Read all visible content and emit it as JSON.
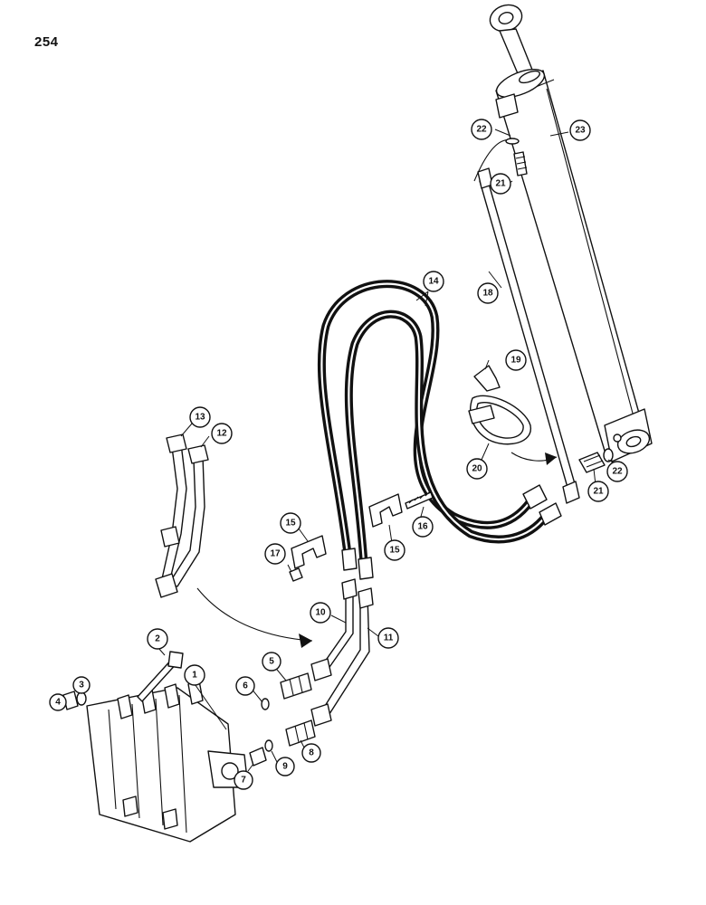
{
  "page": {
    "number": "254"
  },
  "callouts": [
    "1",
    "2",
    "3",
    "4",
    "5",
    "6",
    "7",
    "8",
    "9",
    "10",
    "11",
    "12",
    "13",
    "14",
    "15",
    "16",
    "17",
    "18",
    "19",
    "20",
    "21",
    "22",
    "23"
  ]
}
